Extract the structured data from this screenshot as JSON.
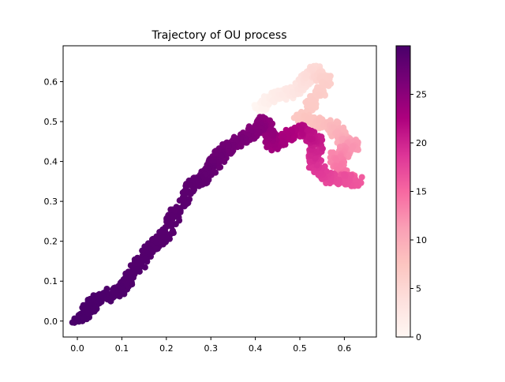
{
  "chart_data": {
    "type": "scatter",
    "title": "Trajectory of OU process",
    "xlabel": "",
    "ylabel": "",
    "xlim": [
      -0.032,
      0.672
    ],
    "ylim": [
      -0.04,
      0.69
    ],
    "xticks": [
      0.0,
      0.1,
      0.2,
      0.3,
      0.4,
      0.5,
      0.6
    ],
    "yticks": [
      0.0,
      0.1,
      0.2,
      0.3,
      0.4,
      0.5,
      0.6
    ],
    "xtick_labels": [
      "0.0",
      "0.1",
      "0.2",
      "0.3",
      "0.4",
      "0.5",
      "0.6"
    ],
    "ytick_labels": [
      "0.0",
      "0.1",
      "0.2",
      "0.3",
      "0.4",
      "0.5",
      "0.6"
    ],
    "grid": false,
    "colormap": "RdPu",
    "color_dimension": "time",
    "colorbar": {
      "min": 0,
      "max": 30,
      "ticks": [
        0,
        5,
        10,
        15,
        20,
        25
      ],
      "tick_labels": [
        "0",
        "5",
        "10",
        "15",
        "20",
        "25"
      ],
      "colors": [
        "#fff7f3",
        "#fde0dd",
        "#fcc5c0",
        "#fa9fb5",
        "#f768a1",
        "#dd3497",
        "#ae017e",
        "#7a0177",
        "#49006a"
      ]
    },
    "path_waypoints": [
      {
        "t": 0.0,
        "x": 0.405,
        "y": 0.53
      },
      {
        "t": 1.5,
        "x": 0.44,
        "y": 0.56
      },
      {
        "t": 3.0,
        "x": 0.5,
        "y": 0.58
      },
      {
        "t": 4.5,
        "x": 0.53,
        "y": 0.63
      },
      {
        "t": 6.0,
        "x": 0.56,
        "y": 0.6
      },
      {
        "t": 7.0,
        "x": 0.5,
        "y": 0.51
      },
      {
        "t": 8.5,
        "x": 0.575,
        "y": 0.49
      },
      {
        "t": 10.0,
        "x": 0.6,
        "y": 0.45
      },
      {
        "t": 11.5,
        "x": 0.62,
        "y": 0.44
      },
      {
        "t": 13.0,
        "x": 0.58,
        "y": 0.41
      },
      {
        "t": 14.5,
        "x": 0.6,
        "y": 0.36
      },
      {
        "t": 16.0,
        "x": 0.63,
        "y": 0.35
      },
      {
        "t": 17.5,
        "x": 0.56,
        "y": 0.36
      },
      {
        "t": 19.0,
        "x": 0.53,
        "y": 0.4
      },
      {
        "t": 20.5,
        "x": 0.54,
        "y": 0.45
      },
      {
        "t": 22.0,
        "x": 0.5,
        "y": 0.48
      },
      {
        "t": 23.5,
        "x": 0.44,
        "y": 0.44
      },
      {
        "t": 25.0,
        "x": 0.42,
        "y": 0.5
      },
      {
        "t": 26.0,
        "x": 0.38,
        "y": 0.46
      },
      {
        "t": 27.0,
        "x": 0.33,
        "y": 0.43
      },
      {
        "t": 28.0,
        "x": 0.29,
        "y": 0.37
      },
      {
        "t": 28.5,
        "x": 0.25,
        "y": 0.33
      },
      {
        "t": 28.9,
        "x": 0.2,
        "y": 0.22
      },
      {
        "t": 29.2,
        "x": 0.15,
        "y": 0.16
      },
      {
        "t": 29.5,
        "x": 0.1,
        "y": 0.08
      },
      {
        "t": 29.8,
        "x": 0.04,
        "y": 0.05
      },
      {
        "t": 30.0,
        "x": 0.0,
        "y": 0.0
      }
    ]
  }
}
